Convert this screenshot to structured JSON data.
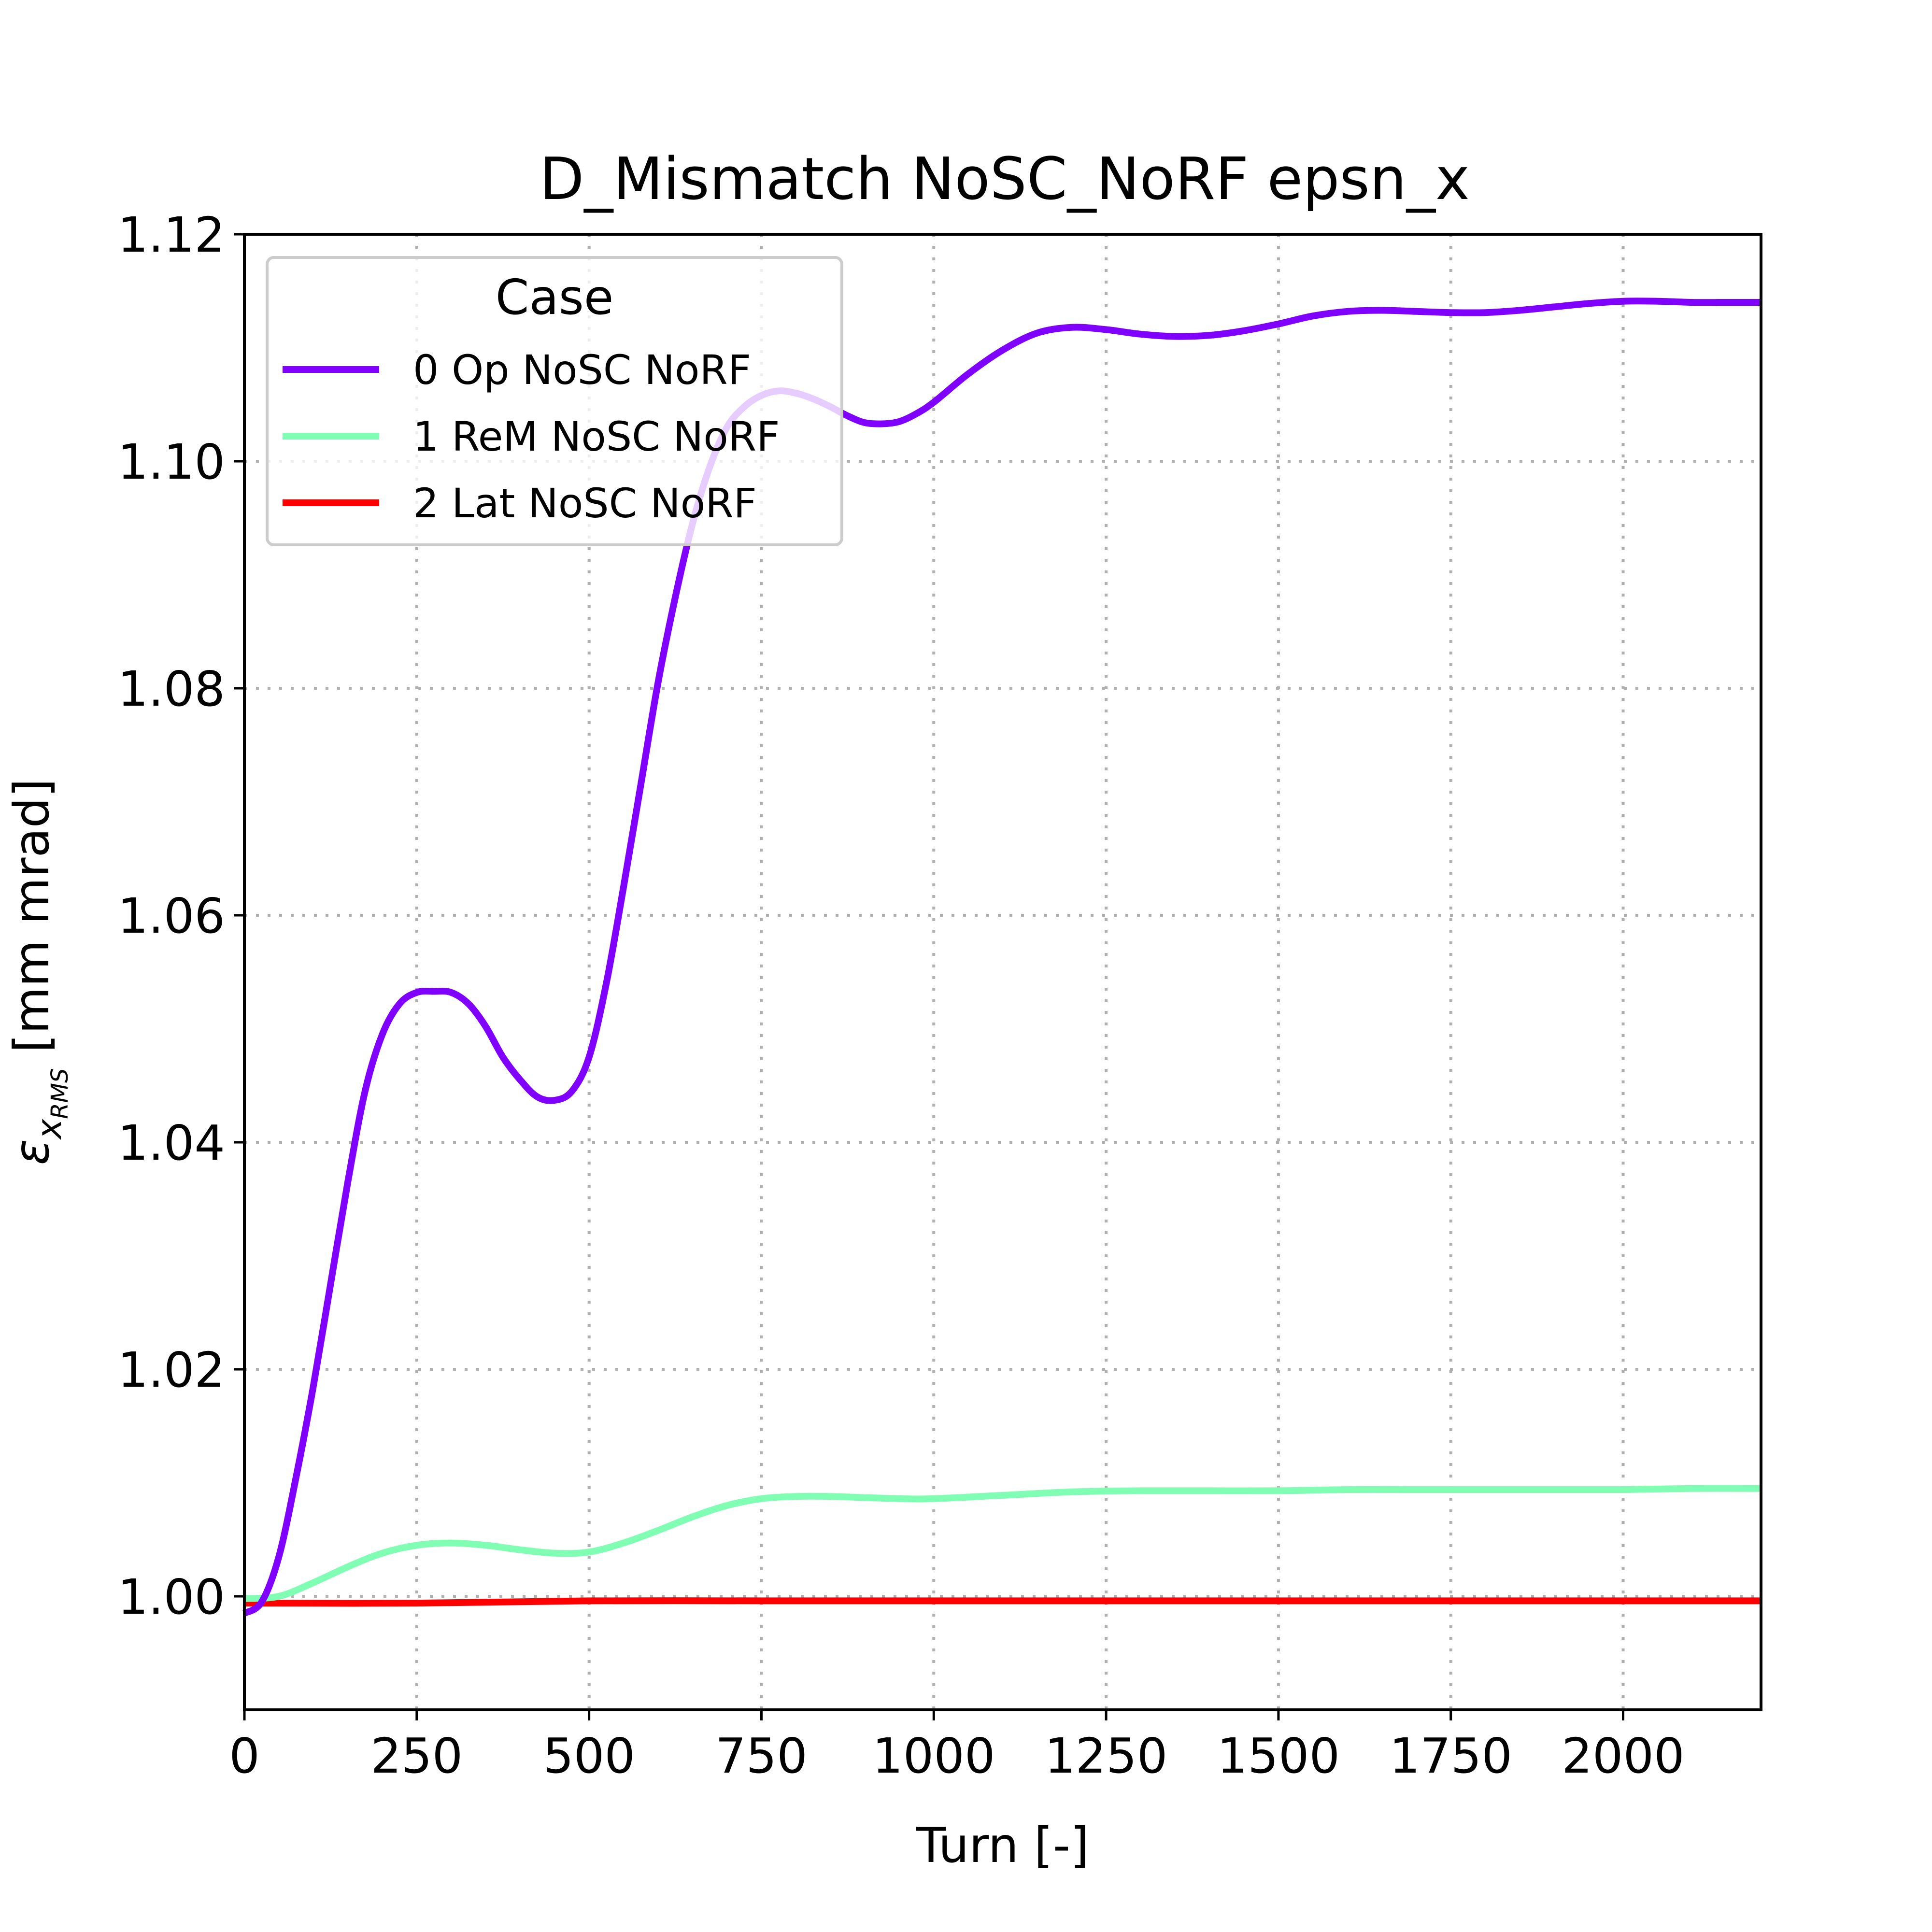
{
  "chart_data": {
    "type": "line",
    "title": "D_Mismatch NoSC_NoRF epsn_x",
    "xlabel": "Turn [-]",
    "ylabel": {
      "symbol": "ε",
      "subscript": "x",
      "subsub": "RMS",
      "unit": " [mm mrad]"
    },
    "xlim": [
      0,
      2200
    ],
    "ylim": [
      0.99,
      1.12
    ],
    "xticks": [
      0,
      250,
      500,
      750,
      1000,
      1250,
      1500,
      1750,
      2000
    ],
    "xtick_labels": [
      "0",
      "250",
      "500",
      "750",
      "1000",
      "1250",
      "1500",
      "1750",
      "2000"
    ],
    "yticks": [
      1.0,
      1.02,
      1.04,
      1.06,
      1.08,
      1.1,
      1.12
    ],
    "ytick_labels": [
      "1.00",
      "1.02",
      "1.04",
      "1.06",
      "1.08",
      "1.10",
      "1.12"
    ],
    "grid": true,
    "legend": {
      "title": "Case",
      "placement": "upper left"
    },
    "series": [
      {
        "name": "0 Op NoSC NoRF",
        "color": "#8000ff",
        "x": [
          0,
          25,
          50,
          75,
          100,
          125,
          150,
          175,
          200,
          225,
          250,
          275,
          300,
          325,
          350,
          375,
          400,
          425,
          450,
          475,
          500,
          525,
          550,
          575,
          600,
          625,
          650,
          675,
          700,
          725,
          750,
          775,
          800,
          825,
          850,
          875,
          900,
          925,
          950,
          975,
          1000,
          1050,
          1100,
          1150,
          1200,
          1250,
          1300,
          1350,
          1400,
          1450,
          1500,
          1550,
          1600,
          1650,
          1700,
          1750,
          1800,
          1850,
          1900,
          1950,
          2000,
          2050,
          2100,
          2150,
          2200
        ],
        "y": [
          0.9985,
          0.9995,
          1.0035,
          1.0105,
          1.0185,
          1.0275,
          1.0365,
          1.0445,
          1.0495,
          1.0522,
          1.0532,
          1.0533,
          1.0532,
          1.0522,
          1.0502,
          1.0475,
          1.0455,
          1.044,
          1.0437,
          1.0445,
          1.0475,
          1.054,
          1.0625,
          1.0715,
          1.0805,
          1.088,
          1.0945,
          1.0995,
          1.103,
          1.1048,
          1.1058,
          1.1062,
          1.106,
          1.1055,
          1.1048,
          1.104,
          1.1034,
          1.1033,
          1.1035,
          1.1042,
          1.1052,
          1.1077,
          1.1098,
          1.1113,
          1.1118,
          1.1116,
          1.1112,
          1.111,
          1.1111,
          1.1115,
          1.1121,
          1.1128,
          1.1132,
          1.1133,
          1.1132,
          1.1131,
          1.1131,
          1.1133,
          1.1136,
          1.1139,
          1.1141,
          1.1141,
          1.114,
          1.114,
          1.114
        ]
      },
      {
        "name": "1 ReM NoSC NoRF",
        "color": "#80ffb4",
        "x": [
          0,
          50,
          100,
          150,
          200,
          250,
          300,
          350,
          400,
          450,
          500,
          550,
          600,
          650,
          700,
          750,
          800,
          850,
          900,
          950,
          1000,
          1100,
          1200,
          1300,
          1400,
          1500,
          1600,
          1700,
          1800,
          1900,
          2000,
          2100,
          2200
        ],
        "y": [
          0.9998,
          1.0,
          1.0012,
          1.0026,
          1.0038,
          1.0045,
          1.0047,
          1.0045,
          1.0041,
          1.0038,
          1.0039,
          1.0047,
          1.0058,
          1.007,
          1.008,
          1.0086,
          1.0088,
          1.0088,
          1.0087,
          1.0086,
          1.0086,
          1.0089,
          1.0092,
          1.0093,
          1.0093,
          1.0093,
          1.0094,
          1.0094,
          1.0094,
          1.0094,
          1.0094,
          1.0095,
          1.0095
        ]
      },
      {
        "name": "2 Lat NoSC NoRF",
        "color": "#ff0000",
        "x": [
          0,
          250,
          500,
          750,
          1000,
          1250,
          1500,
          1750,
          2000,
          2200
        ],
        "y": [
          0.9994,
          0.9994,
          0.9996,
          0.9996,
          0.9996,
          0.9996,
          0.9996,
          0.9996,
          0.9996,
          0.9996
        ]
      }
    ]
  }
}
